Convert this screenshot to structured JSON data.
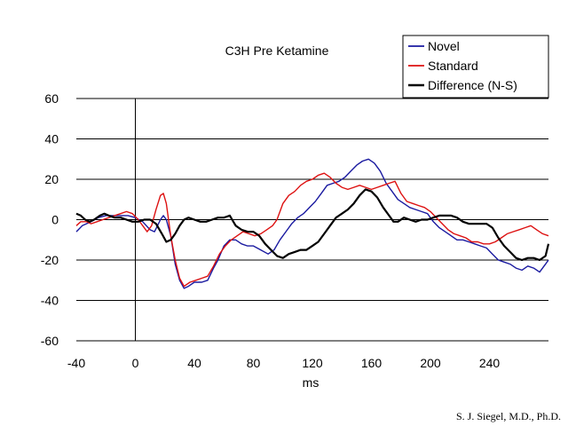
{
  "chart_data": {
    "type": "line",
    "title": "C3H Pre Ketamine",
    "xlabel": "ms",
    "ylabel": "",
    "xlim": [
      -40,
      280
    ],
    "ylim": [
      -60,
      60
    ],
    "xticks": [
      -40,
      0,
      40,
      80,
      120,
      160,
      200,
      240
    ],
    "yticks": [
      -60,
      -40,
      -20,
      0,
      20,
      40,
      60
    ],
    "xtick_labels": [
      "-40",
      "0",
      "40",
      "80",
      "120",
      "160",
      "200",
      "240"
    ],
    "ytick_labels": [
      "-60",
      "-40",
      "-20",
      "0",
      "20",
      "40",
      "60"
    ],
    "grid": "horizontal",
    "legend_position": "top-right",
    "series": [
      {
        "name": "Novel",
        "color": "#1a1aa0",
        "stroke_width": 1.4,
        "points": [
          [
            -40,
            -6
          ],
          [
            -36,
            -3
          ],
          [
            -30,
            -1
          ],
          [
            -25,
            1
          ],
          [
            -20,
            2
          ],
          [
            -15,
            2
          ],
          [
            -10,
            2
          ],
          [
            -5,
            2
          ],
          [
            0,
            1
          ],
          [
            5,
            -1
          ],
          [
            10,
            -5
          ],
          [
            13,
            -6
          ],
          [
            17,
            0
          ],
          [
            19,
            2
          ],
          [
            21,
            0
          ],
          [
            24,
            -8
          ],
          [
            27,
            -22
          ],
          [
            30,
            -30
          ],
          [
            33,
            -34
          ],
          [
            36,
            -33
          ],
          [
            40,
            -31
          ],
          [
            45,
            -31
          ],
          [
            49,
            -30
          ],
          [
            53,
            -24
          ],
          [
            56,
            -20
          ],
          [
            60,
            -13
          ],
          [
            64,
            -10
          ],
          [
            68,
            -10
          ],
          [
            72,
            -12
          ],
          [
            76,
            -13
          ],
          [
            80,
            -13
          ],
          [
            85,
            -15
          ],
          [
            90,
            -17
          ],
          [
            94,
            -15
          ],
          [
            98,
            -10
          ],
          [
            102,
            -6
          ],
          [
            106,
            -2
          ],
          [
            110,
            1
          ],
          [
            114,
            3
          ],
          [
            118,
            6
          ],
          [
            122,
            9
          ],
          [
            126,
            13
          ],
          [
            130,
            17
          ],
          [
            134,
            18
          ],
          [
            138,
            19
          ],
          [
            142,
            21
          ],
          [
            146,
            24
          ],
          [
            150,
            27
          ],
          [
            154,
            29
          ],
          [
            158,
            30
          ],
          [
            162,
            28
          ],
          [
            166,
            24
          ],
          [
            170,
            18
          ],
          [
            174,
            14
          ],
          [
            178,
            10
          ],
          [
            182,
            8
          ],
          [
            186,
            6
          ],
          [
            190,
            5
          ],
          [
            194,
            4
          ],
          [
            198,
            3
          ],
          [
            202,
            -1
          ],
          [
            206,
            -4
          ],
          [
            210,
            -6
          ],
          [
            214,
            -8
          ],
          [
            218,
            -10
          ],
          [
            222,
            -10
          ],
          [
            226,
            -11
          ],
          [
            230,
            -12
          ],
          [
            234,
            -13
          ],
          [
            238,
            -14
          ],
          [
            242,
            -17
          ],
          [
            246,
            -20
          ],
          [
            250,
            -21
          ],
          [
            254,
            -22
          ],
          [
            258,
            -24
          ],
          [
            262,
            -25
          ],
          [
            266,
            -23
          ],
          [
            270,
            -24
          ],
          [
            274,
            -26
          ],
          [
            278,
            -22
          ],
          [
            280,
            -20
          ]
        ]
      },
      {
        "name": "Standard",
        "color": "#dd1111",
        "stroke_width": 1.4,
        "points": [
          [
            -40,
            -3
          ],
          [
            -37,
            -1
          ],
          [
            -33,
            -1
          ],
          [
            -30,
            -2
          ],
          [
            -26,
            -1
          ],
          [
            -22,
            0
          ],
          [
            -18,
            1
          ],
          [
            -14,
            2
          ],
          [
            -10,
            3
          ],
          [
            -6,
            4
          ],
          [
            -2,
            3
          ],
          [
            2,
            0
          ],
          [
            5,
            -3
          ],
          [
            8,
            -6
          ],
          [
            11,
            -3
          ],
          [
            14,
            5
          ],
          [
            17,
            12
          ],
          [
            19,
            13
          ],
          [
            21,
            8
          ],
          [
            24,
            -8
          ],
          [
            27,
            -20
          ],
          [
            30,
            -29
          ],
          [
            33,
            -33
          ],
          [
            37,
            -31
          ],
          [
            41,
            -30
          ],
          [
            45,
            -29
          ],
          [
            49,
            -28
          ],
          [
            53,
            -23
          ],
          [
            57,
            -17
          ],
          [
            61,
            -13
          ],
          [
            65,
            -10
          ],
          [
            69,
            -8
          ],
          [
            73,
            -6
          ],
          [
            77,
            -7
          ],
          [
            81,
            -8
          ],
          [
            85,
            -7
          ],
          [
            89,
            -5
          ],
          [
            93,
            -3
          ],
          [
            96,
            0
          ],
          [
            100,
            8
          ],
          [
            104,
            12
          ],
          [
            108,
            14
          ],
          [
            112,
            17
          ],
          [
            116,
            19
          ],
          [
            120,
            20
          ],
          [
            124,
            22
          ],
          [
            128,
            23
          ],
          [
            132,
            21
          ],
          [
            136,
            18
          ],
          [
            140,
            16
          ],
          [
            144,
            15
          ],
          [
            148,
            16
          ],
          [
            152,
            17
          ],
          [
            156,
            16
          ],
          [
            160,
            15
          ],
          [
            164,
            16
          ],
          [
            168,
            17
          ],
          [
            172,
            18
          ],
          [
            176,
            19
          ],
          [
            180,
            13
          ],
          [
            184,
            9
          ],
          [
            188,
            8
          ],
          [
            192,
            7
          ],
          [
            196,
            6
          ],
          [
            200,
            4
          ],
          [
            204,
            1
          ],
          [
            208,
            -2
          ],
          [
            212,
            -5
          ],
          [
            216,
            -7
          ],
          [
            220,
            -8
          ],
          [
            224,
            -9
          ],
          [
            228,
            -11
          ],
          [
            232,
            -11
          ],
          [
            236,
            -12
          ],
          [
            240,
            -12
          ],
          [
            244,
            -11
          ],
          [
            248,
            -9
          ],
          [
            252,
            -7
          ],
          [
            256,
            -6
          ],
          [
            260,
            -5
          ],
          [
            264,
            -4
          ],
          [
            268,
            -3
          ],
          [
            272,
            -5
          ],
          [
            276,
            -7
          ],
          [
            280,
            -8
          ]
        ]
      },
      {
        "name": "Difference (N-S)",
        "color": "#000000",
        "stroke_width": 2.2,
        "points": [
          [
            -40,
            3
          ],
          [
            -37,
            2
          ],
          [
            -34,
            0
          ],
          [
            -31,
            -1
          ],
          [
            -28,
            0
          ],
          [
            -24,
            2
          ],
          [
            -21,
            3
          ],
          [
            -18,
            2
          ],
          [
            -14,
            1
          ],
          [
            -10,
            1
          ],
          [
            -6,
            0
          ],
          [
            -2,
            -1
          ],
          [
            2,
            -1
          ],
          [
            6,
            0
          ],
          [
            10,
            0
          ],
          [
            14,
            -2
          ],
          [
            18,
            -7
          ],
          [
            21,
            -11
          ],
          [
            24,
            -10
          ],
          [
            27,
            -7
          ],
          [
            30,
            -3
          ],
          [
            33,
            0
          ],
          [
            36,
            1
          ],
          [
            40,
            0
          ],
          [
            44,
            -1
          ],
          [
            48,
            -1
          ],
          [
            52,
            0
          ],
          [
            56,
            1
          ],
          [
            60,
            1
          ],
          [
            64,
            2
          ],
          [
            68,
            -3
          ],
          [
            72,
            -5
          ],
          [
            76,
            -6
          ],
          [
            80,
            -6
          ],
          [
            84,
            -8
          ],
          [
            88,
            -12
          ],
          [
            92,
            -15
          ],
          [
            96,
            -18
          ],
          [
            100,
            -19
          ],
          [
            104,
            -17
          ],
          [
            108,
            -16
          ],
          [
            112,
            -15
          ],
          [
            116,
            -15
          ],
          [
            120,
            -13
          ],
          [
            124,
            -11
          ],
          [
            128,
            -7
          ],
          [
            132,
            -3
          ],
          [
            136,
            1
          ],
          [
            140,
            3
          ],
          [
            144,
            5
          ],
          [
            148,
            8
          ],
          [
            152,
            12
          ],
          [
            156,
            15
          ],
          [
            160,
            14
          ],
          [
            164,
            11
          ],
          [
            168,
            6
          ],
          [
            172,
            2
          ],
          [
            175,
            -1
          ],
          [
            178,
            -1
          ],
          [
            182,
            1
          ],
          [
            186,
            0
          ],
          [
            190,
            -1
          ],
          [
            194,
            0
          ],
          [
            198,
            0
          ],
          [
            202,
            1
          ],
          [
            206,
            2
          ],
          [
            210,
            2
          ],
          [
            214,
            2
          ],
          [
            218,
            1
          ],
          [
            222,
            -1
          ],
          [
            226,
            -2
          ],
          [
            230,
            -2
          ],
          [
            234,
            -2
          ],
          [
            238,
            -2
          ],
          [
            242,
            -4
          ],
          [
            246,
            -9
          ],
          [
            250,
            -13
          ],
          [
            254,
            -16
          ],
          [
            258,
            -19
          ],
          [
            262,
            -20
          ],
          [
            266,
            -19
          ],
          [
            270,
            -19
          ],
          [
            274,
            -20
          ],
          [
            278,
            -18
          ],
          [
            280,
            -12
          ]
        ]
      }
    ]
  },
  "credit": "S. J. Siegel, M.D., Ph.D."
}
